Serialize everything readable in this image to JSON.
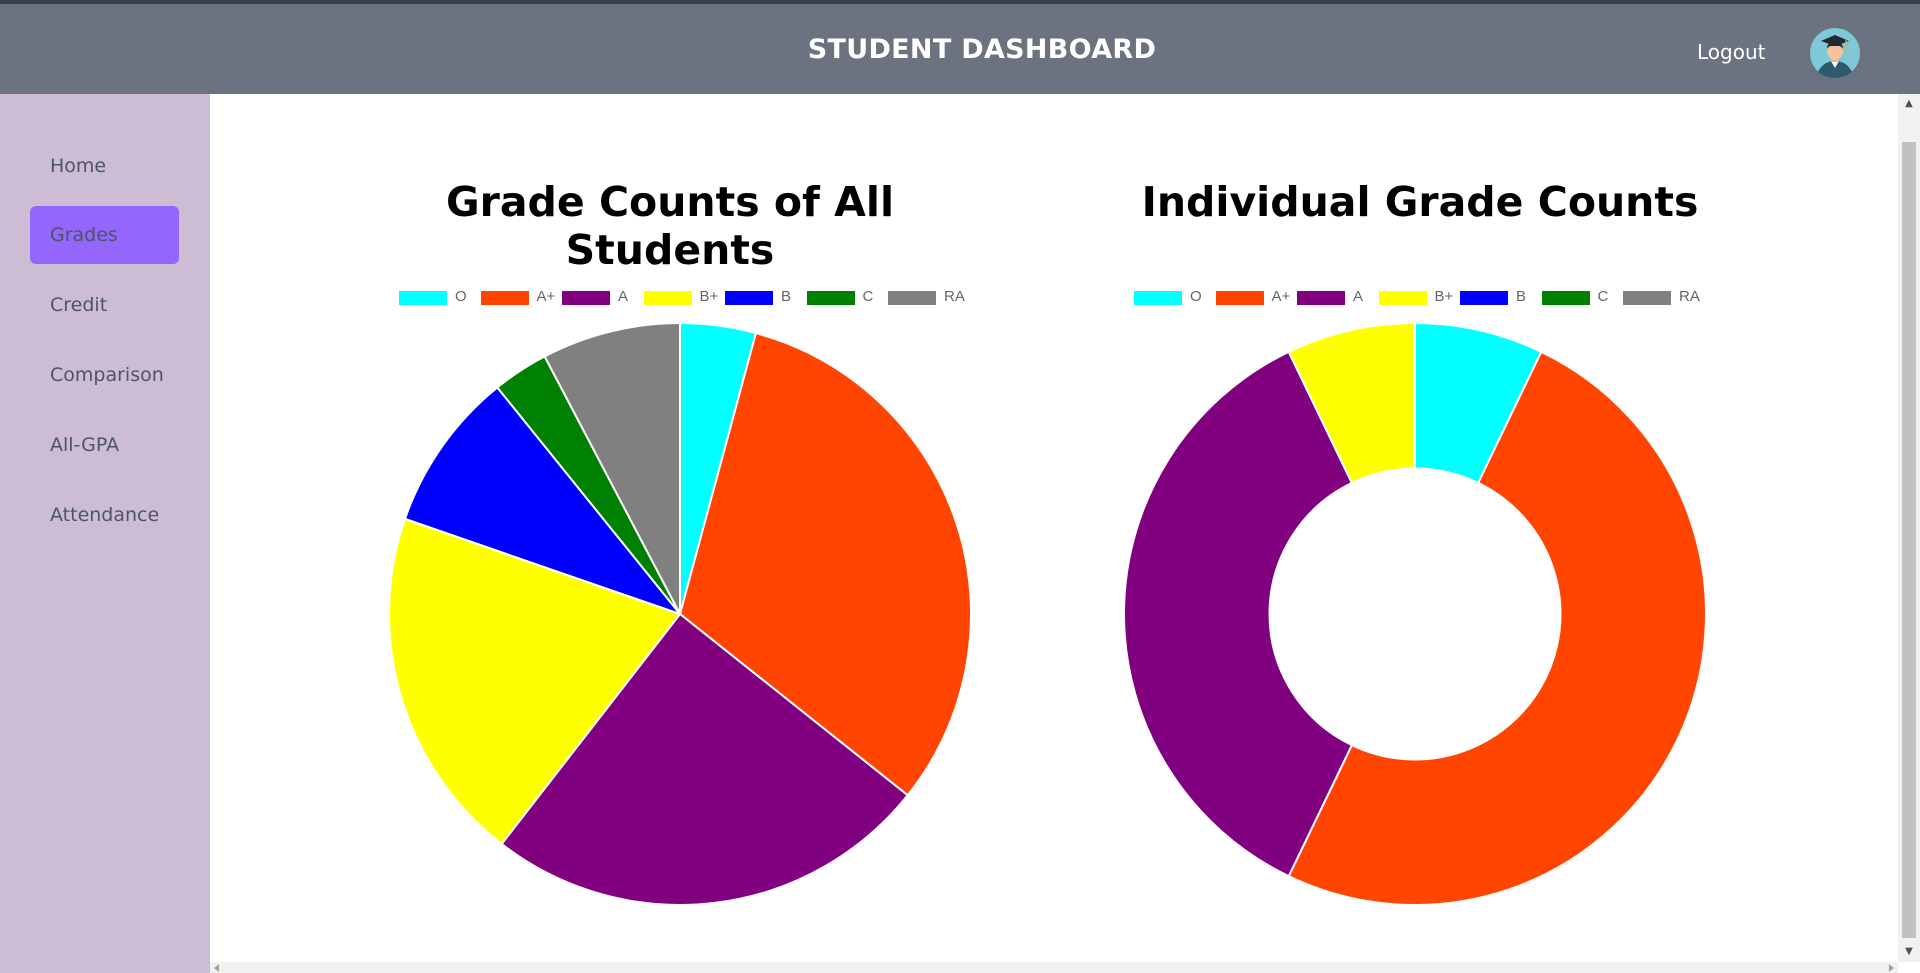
{
  "header": {
    "title": "STUDENT DASHBOARD",
    "logout_label": "Logout",
    "avatar_icon": "graduate-avatar-icon",
    "background": "#6b7280"
  },
  "sidebar": {
    "background": "#cdbdd4",
    "active_color": "#9466fb",
    "items": [
      {
        "label": "Home"
      },
      {
        "label": "Grades",
        "active": true
      },
      {
        "label": "Credit"
      },
      {
        "label": "Comparison"
      },
      {
        "label": "All-GPA"
      },
      {
        "label": "Attendance"
      }
    ]
  },
  "chart_data": [
    {
      "type": "pie",
      "title": "Grade Counts of All Students",
      "legend_position": "top",
      "categories": [
        "O",
        "A+",
        "A",
        "B+",
        "B",
        "C",
        "RA"
      ],
      "values": [
        4.2,
        31.5,
        24.8,
        19.8,
        8.9,
        3.1,
        7.7
      ],
      "colors": [
        "#00ffff",
        "#ff4500",
        "#800080",
        "#ffff00",
        "#0000ff",
        "#008000",
        "#808080"
      ]
    },
    {
      "type": "doughnut",
      "title": "Individual Grade Counts",
      "legend_position": "top",
      "categories": [
        "O",
        "A+",
        "A",
        "B+",
        "B",
        "C",
        "RA"
      ],
      "values": [
        1,
        7,
        5,
        1,
        0,
        0,
        0
      ],
      "colors": [
        "#00ffff",
        "#ff4500",
        "#800080",
        "#ffff00",
        "#0000ff",
        "#008000",
        "#808080"
      ]
    }
  ]
}
